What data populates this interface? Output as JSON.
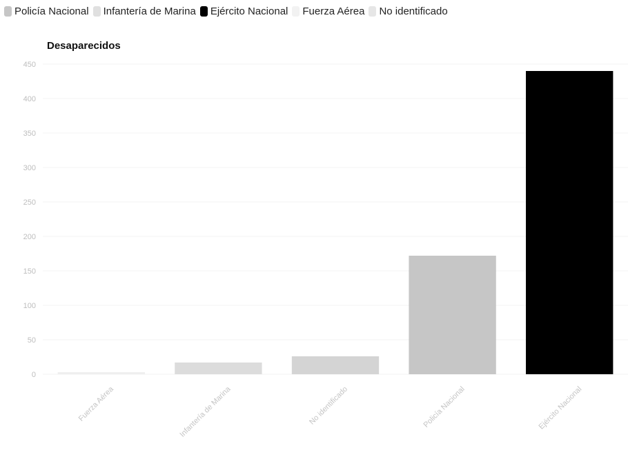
{
  "legend": {
    "items": [
      {
        "label": "Policía Nacional",
        "color": "#c6c6c6"
      },
      {
        "label": "Infantería de Marina",
        "color": "#e0e0e0"
      },
      {
        "label": "Ejército Nacional",
        "color": "#000000"
      },
      {
        "label": "Fuerza Aérea",
        "color": "#f2f2f2"
      },
      {
        "label": "No identificado",
        "color": "#e6e6e6"
      }
    ]
  },
  "chart_data": {
    "type": "bar",
    "title": "Desaparecidos",
    "xlabel": "",
    "ylabel": "",
    "categories": [
      "Fuerza Aérea",
      "Infantería de Marina",
      "No identificado",
      "Policía Nacional",
      "Ejército Nacional"
    ],
    "values": [
      3,
      17,
      26,
      172,
      440
    ],
    "colors": [
      "#efefef",
      "#dcdcdc",
      "#d4d4d4",
      "#c6c6c6",
      "#000000"
    ],
    "ylim": [
      0,
      450
    ],
    "yticks": [
      0,
      50,
      100,
      150,
      200,
      250,
      300,
      350,
      400,
      450
    ],
    "grid": true,
    "legend_position": "top"
  }
}
